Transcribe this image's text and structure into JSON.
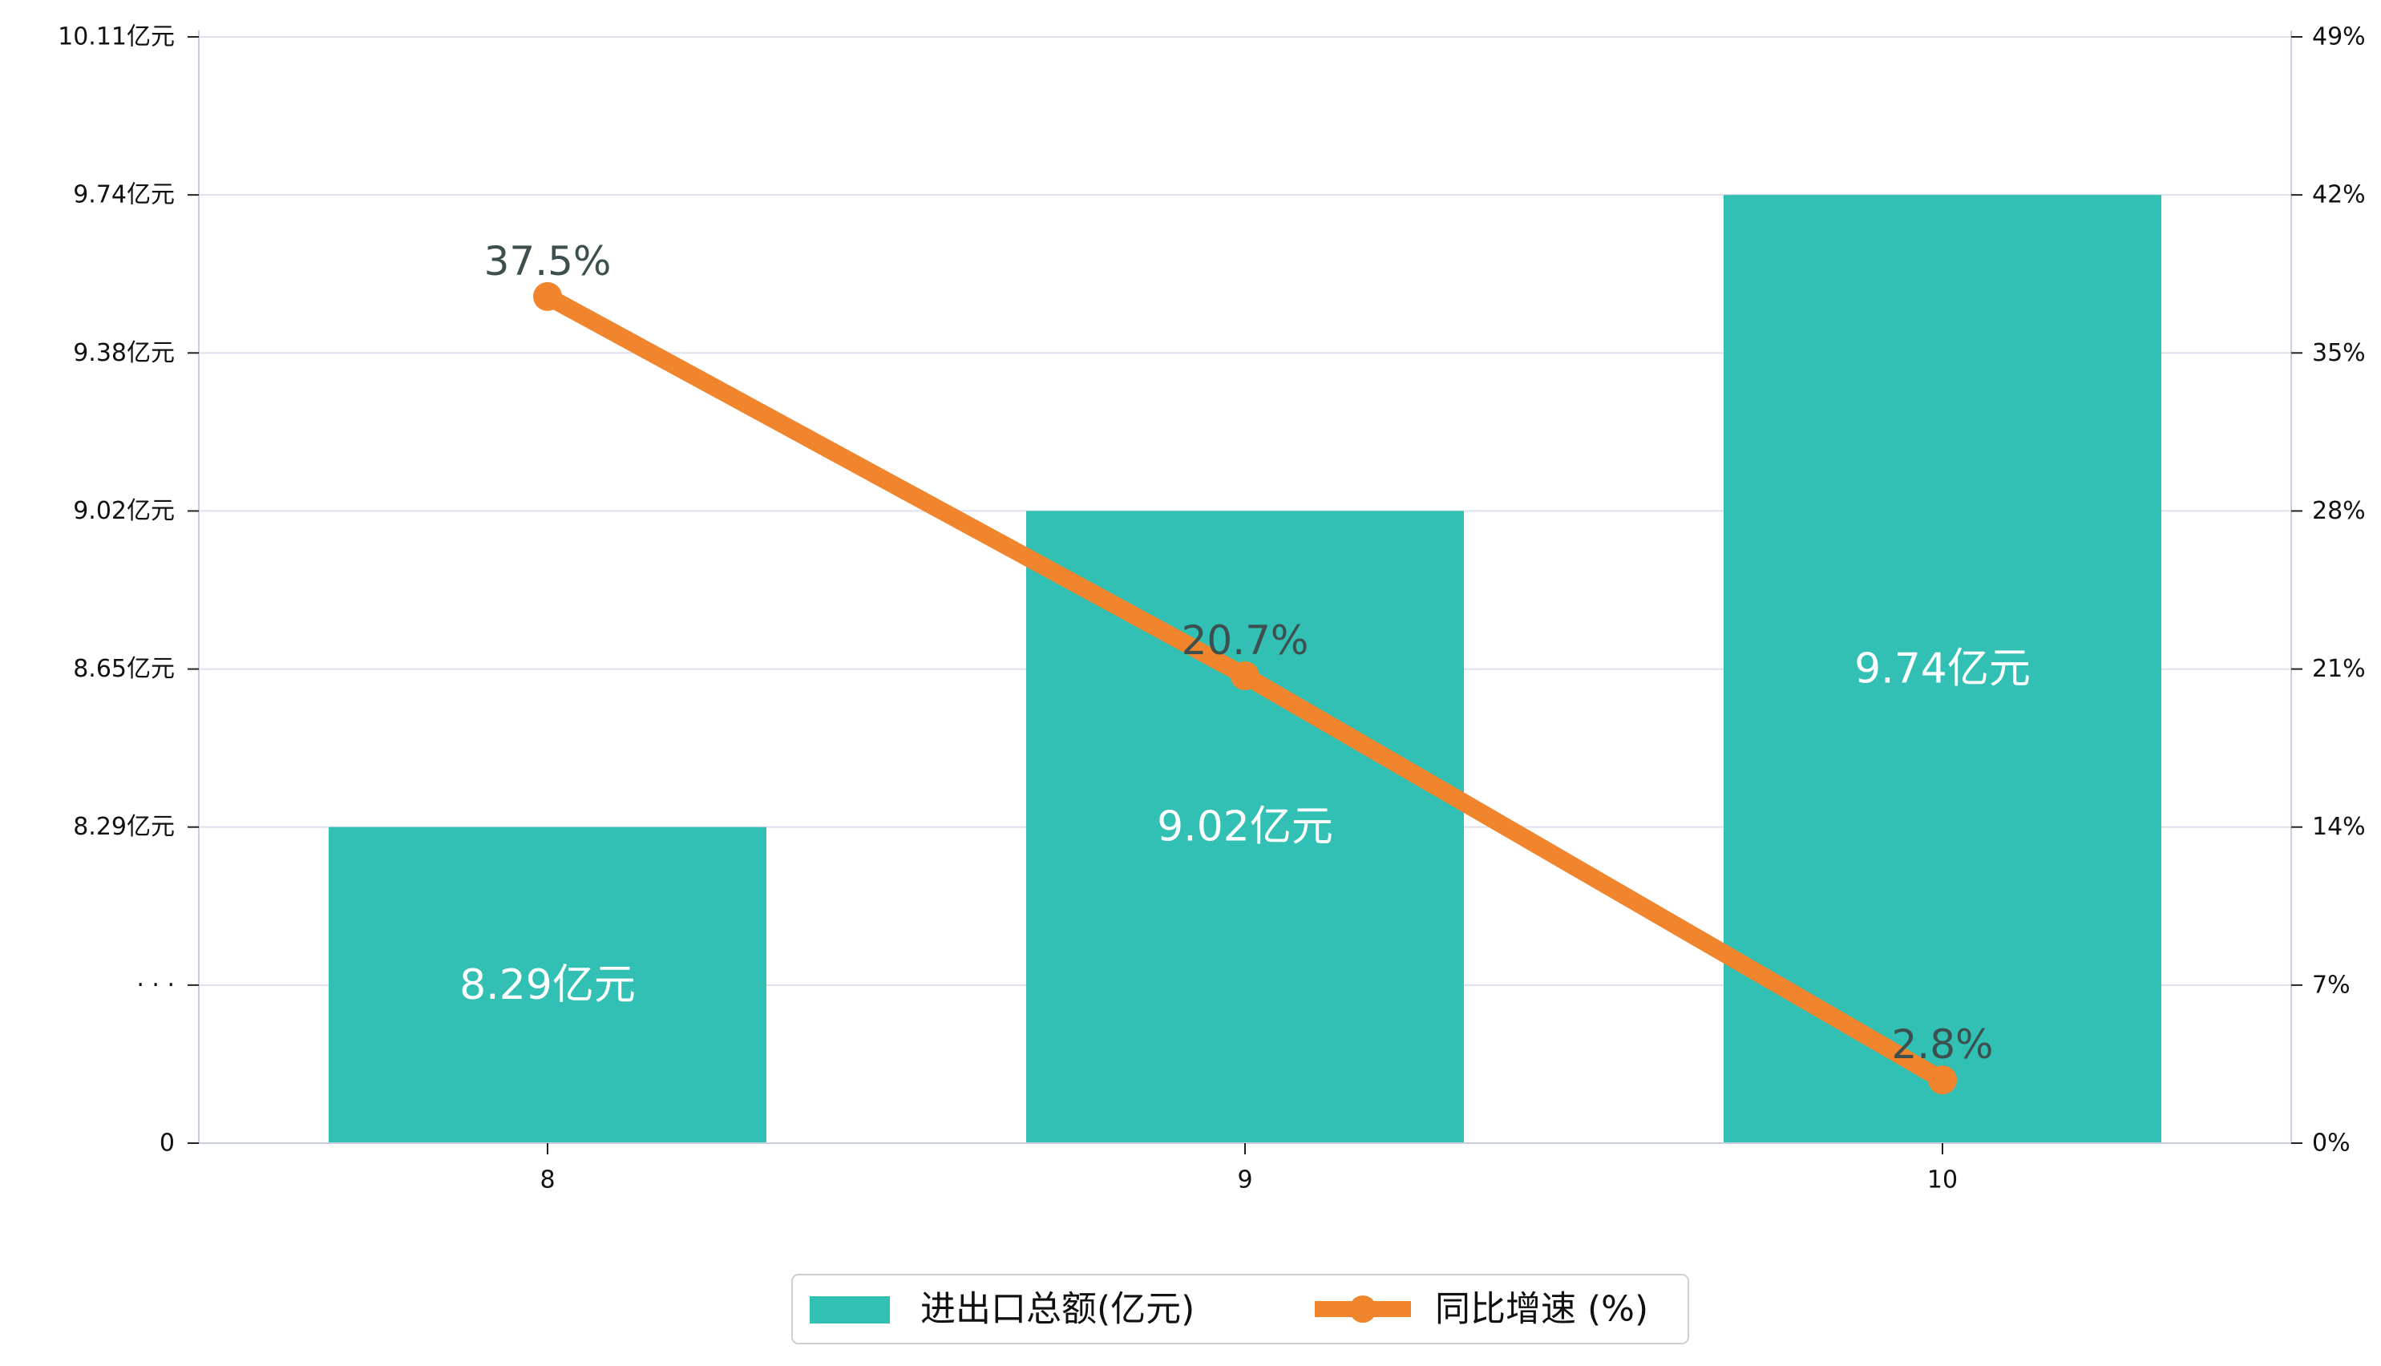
{
  "chart_data": {
    "type": "bar",
    "categories": [
      "8",
      "9",
      "10"
    ],
    "series": [
      {
        "name": "进出口总额(亿元)",
        "kind": "bar",
        "axis": "left",
        "values": [
          8.29,
          9.02,
          9.74
        ],
        "labels": [
          "8.29亿元",
          "9.02亿元",
          "9.74亿元"
        ]
      },
      {
        "name": "同比增速 (%)",
        "kind": "line",
        "axis": "right",
        "values": [
          37.5,
          20.7,
          2.8
        ],
        "labels": [
          "37.5%",
          "20.7%",
          "2.8%"
        ]
      }
    ],
    "y_left": {
      "tick_labels": [
        "0",
        "· · ·",
        "8.29亿元",
        "8.65亿元",
        "9.02亿元",
        "9.38亿元",
        "9.74亿元",
        "10.11亿元"
      ],
      "tick_values": [
        null,
        null,
        8.29,
        8.65,
        9.02,
        9.38,
        9.74,
        10.11
      ],
      "note": "broken axis: 0 at bottom, ellipsis, then 8.29 to 10.11"
    },
    "y_right": {
      "tick_labels": [
        "0%",
        "7%",
        "14%",
        "21%",
        "28%",
        "35%",
        "42%",
        "49%"
      ],
      "tick_values": [
        0,
        7,
        14,
        21,
        28,
        35,
        42,
        49
      ],
      "ylim": [
        0,
        49
      ]
    },
    "grid": true,
    "legend_position": "bottom-center"
  },
  "colors": {
    "bar": "#31c0b3",
    "line": "#f0852d",
    "grid": "#dde0ee",
    "axis": "#c9cde0",
    "bar_label": "#ffffff",
    "line_label": "#3d4f4f"
  }
}
